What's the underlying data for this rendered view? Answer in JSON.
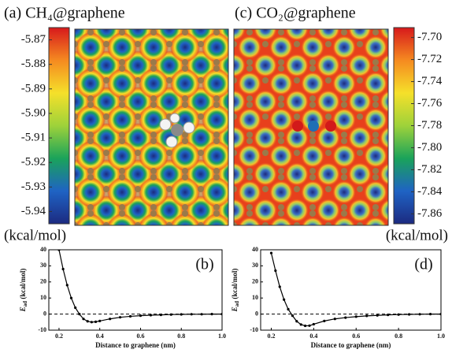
{
  "chart_data": [
    {
      "type": "heatmap",
      "title": "(a) CH₄@graphene",
      "colorbar_label": "(kcal/mol)",
      "clim": [
        -5.945,
        -5.865
      ],
      "cticks": [
        -5.87,
        -5.88,
        -5.89,
        {
          "value": -5.9,
          "label": "-5.90"
        },
        -5.91,
        -5.92,
        -5.93,
        -5.94
      ],
      "colormap": [
        "#1c2a80",
        "#1f63c4",
        "#1aa35a",
        "#9ed23a",
        "#f5e02a",
        "#f58a20",
        "#d7191c"
      ]
    },
    {
      "type": "heatmap",
      "title": "(c) CO₂@graphene",
      "colorbar_label": "(kcal/mol)",
      "clim": [
        -7.869,
        -7.691
      ],
      "cticks": [
        {
          "value": -7.7,
          "label": "-7.70"
        },
        -7.72,
        -7.74,
        -7.76,
        -7.78,
        {
          "value": -7.8,
          "label": "-7.80"
        },
        -7.82,
        -7.84,
        -7.86
      ],
      "colormap": [
        "#1c2a80",
        "#1f63c4",
        "#1aa35a",
        "#9ed23a",
        "#f5e02a",
        "#f58a20",
        "#d7191c"
      ]
    },
    {
      "type": "line",
      "panel_label": "(b)",
      "xlabel": "Distance to graphene (nm)",
      "ylabel": "E",
      "ylabel_subscript": "ad",
      "ylabel_unit": " (kcal/mol)",
      "x": [
        0.2,
        0.22,
        0.24,
        0.26,
        0.28,
        0.3,
        0.32,
        0.34,
        0.36,
        0.38,
        0.4,
        0.45,
        0.5,
        0.55,
        0.6,
        0.65,
        0.7,
        0.75,
        0.8,
        0.85,
        0.9,
        0.95,
        1.0
      ],
      "values": [
        40,
        28,
        18,
        10,
        4,
        0,
        -3,
        -4.5,
        -5,
        -4.8,
        -4.3,
        -3,
        -2,
        -1.4,
        -1,
        -0.7,
        -0.5,
        -0.3,
        -0.2,
        -0.1,
        -0.1,
        0,
        0
      ],
      "color": "#000000",
      "reference_line": 0,
      "xlim": [
        0.15,
        1.0
      ],
      "ylim": [
        -10,
        40
      ],
      "xticks": [
        0.2,
        0.4,
        0.6,
        0.8,
        {
          "value": 1,
          "label": "1.0"
        }
      ],
      "yticks": [
        -10,
        0,
        10,
        20,
        30,
        40
      ]
    },
    {
      "type": "line",
      "panel_label": "(d)",
      "xlabel": "Distance to graphene (nm)",
      "ylabel": "E",
      "ylabel_subscript": "ad",
      "ylabel_unit": " (kcal/mol)",
      "x": [
        0.2,
        0.22,
        0.24,
        0.26,
        0.28,
        0.3,
        0.32,
        0.34,
        0.36,
        0.38,
        0.4,
        0.45,
        0.5,
        0.55,
        0.6,
        0.65,
        0.7,
        0.75,
        0.8,
        0.85,
        0.9,
        0.95,
        1.0
      ],
      "values": [
        38,
        27,
        17,
        9,
        3,
        -1,
        -4.5,
        -6.5,
        -7.3,
        -7.2,
        -6.3,
        -4.3,
        -3,
        -2.2,
        -1.6,
        -1.1,
        -0.8,
        -0.5,
        -0.3,
        -0.2,
        -0.1,
        0,
        0
      ],
      "color": "#000000",
      "reference_line": 0,
      "xlim": [
        0.15,
        1.0
      ],
      "ylim": [
        -10,
        40
      ],
      "xticks": [
        0.2,
        0.4,
        0.6,
        0.8,
        {
          "value": 1,
          "label": "1.0"
        }
      ],
      "yticks": [
        -10,
        0,
        10,
        20,
        30,
        40
      ]
    }
  ]
}
